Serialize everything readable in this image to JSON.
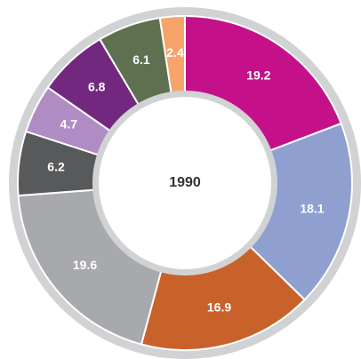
{
  "chart_data": {
    "type": "pie",
    "title": "1990",
    "values": [
      19.2,
      18.1,
      16.9,
      19.6,
      6.2,
      4.7,
      6.8,
      6.1,
      2.4
    ],
    "colors": [
      "#c4118a",
      "#8e9fd0",
      "#c9622a",
      "#a7a9ac",
      "#58595b",
      "#b08cc4",
      "#72287f",
      "#5e7050",
      "#f7a46b"
    ],
    "donut": true
  }
}
